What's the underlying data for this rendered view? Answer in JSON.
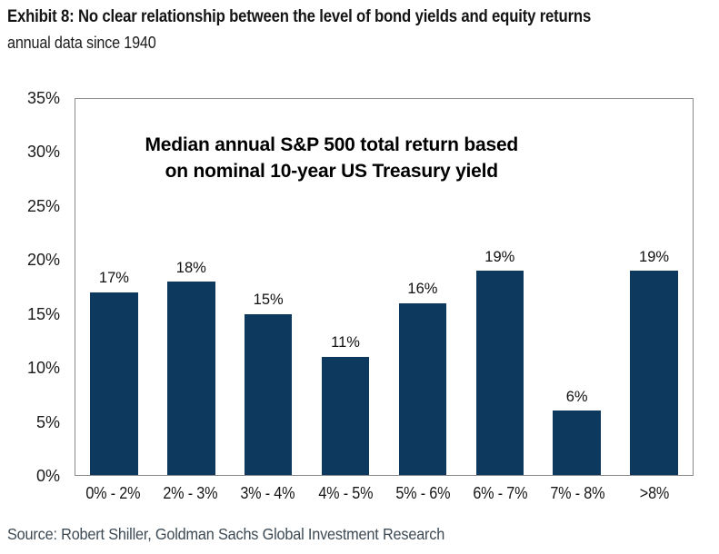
{
  "header": {
    "title": "Exhibit 8: No clear relationship between the level of bond yields and equity returns",
    "subtitle": "annual data since 1940"
  },
  "chart_data": {
    "type": "bar",
    "title": "Median annual S&P 500 total return based on nominal 10-year US Treasury yield",
    "title_lines": [
      "Median annual S&P 500 total return based",
      "on nominal 10-year US Treasury yield"
    ],
    "categories": [
      "0% - 2%",
      "2% - 3%",
      "3% - 4%",
      "4% - 5%",
      "5% - 6%",
      "6% - 7%",
      "7% - 8%",
      ">8%"
    ],
    "values": [
      17,
      18,
      15,
      11,
      16,
      19,
      6,
      19
    ],
    "value_labels": [
      "17%",
      "18%",
      "15%",
      "11%",
      "16%",
      "19%",
      "6%",
      "19%"
    ],
    "xlabel": "",
    "ylabel": "",
    "ylim": [
      0,
      35
    ],
    "ytick_step": 5,
    "ytick_labels": [
      "0%",
      "5%",
      "10%",
      "15%",
      "20%",
      "25%",
      "30%",
      "35%"
    ],
    "grid": false,
    "legend": false,
    "bar_color": "#0e395f",
    "plot_border_color": "#8c8c8c"
  },
  "footer": {
    "source": "Source: Robert Shiller, Goldman Sachs Global Investment Research"
  }
}
